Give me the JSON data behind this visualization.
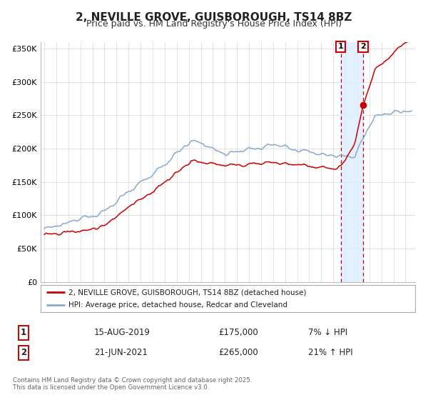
{
  "title": "2, NEVILLE GROVE, GUISBOROUGH, TS14 8BZ",
  "subtitle": "Price paid vs. HM Land Registry's House Price Index (HPI)",
  "ylim": [
    0,
    360000
  ],
  "yticks": [
    0,
    50000,
    100000,
    150000,
    200000,
    250000,
    300000,
    350000
  ],
  "ytick_labels": [
    "£0",
    "£50K",
    "£100K",
    "£150K",
    "£200K",
    "£250K",
    "£300K",
    "£350K"
  ],
  "xlim_start": 1994.7,
  "xlim_end": 2025.8,
  "red_line_color": "#cc0000",
  "blue_line_color": "#88aacc",
  "sale1_x": 2019.617,
  "sale1_y": 175000,
  "sale2_x": 2021.472,
  "sale2_y": 265000,
  "marker_color": "#cc0000",
  "vline_color": "#cc0000",
  "shade_color": "#ddeeff",
  "legend_label1": "2, NEVILLE GROVE, GUISBOROUGH, TS14 8BZ (detached house)",
  "legend_label2": "HPI: Average price, detached house, Redcar and Cleveland",
  "table_row1": [
    "1",
    "15-AUG-2019",
    "£175,000",
    "7% ↓ HPI"
  ],
  "table_row2": [
    "2",
    "21-JUN-2021",
    "£265,000",
    "21% ↑ HPI"
  ],
  "footnote": "Contains HM Land Registry data © Crown copyright and database right 2025.\nThis data is licensed under the Open Government Licence v3.0.",
  "background_color": "#ffffff",
  "grid_color": "#dddddd",
  "title_fontsize": 11,
  "subtitle_fontsize": 9
}
